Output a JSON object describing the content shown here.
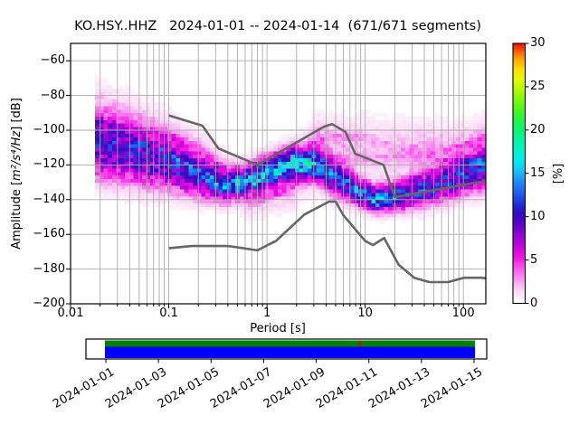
{
  "chart_data": {
    "type": "heatmap",
    "subtype": "ppsd-spectrogram",
    "title": "KO.HSY..HHZ   2024-01-01 -- 2024-01-14  (671/671 segments)",
    "station": "KO.HSY..HHZ",
    "date_range": "2024-01-01 -- 2024-01-14",
    "segments": "671/671 segments",
    "xlabel": "Period [s]",
    "ylabel": {
      "prefix": "Amplitude [",
      "math": "m²/s⁴/Hz",
      "suffix": "] [dB]"
    },
    "x_axis": {
      "scale": "log",
      "min": 0.01,
      "max": 170,
      "ticks": [
        0.01,
        0.1,
        1,
        10,
        100
      ],
      "tick_labels": [
        "0.01",
        "0.1",
        "1",
        "10",
        "100"
      ]
    },
    "y_axis": {
      "min": -200,
      "max": -50,
      "ticks": [
        -60,
        -80,
        -100,
        -120,
        -140,
        -160,
        -180,
        -200
      ],
      "tick_labels": [
        "−60",
        "−80",
        "−100",
        "−120",
        "−140",
        "−160",
        "−180",
        "−200"
      ]
    },
    "grid": {
      "color": "#ababab",
      "major_x": true,
      "minor_x": true,
      "major_y": true
    },
    "colorbar": {
      "label": "[%]",
      "min": 0,
      "max": 30,
      "ticks": [
        0,
        5,
        10,
        15,
        20,
        25,
        30
      ],
      "stops": [
        [
          0,
          "#ffffff"
        ],
        [
          0.05,
          "#fdd7f7"
        ],
        [
          0.1,
          "#fb8af0"
        ],
        [
          0.15,
          "#f93fe9"
        ],
        [
          0.18,
          "#ef0fe0"
        ],
        [
          0.22,
          "#c307dd"
        ],
        [
          0.27,
          "#8a05d3"
        ],
        [
          0.31,
          "#5503c8"
        ],
        [
          0.35,
          "#2d0cc4"
        ],
        [
          0.38,
          "#1e30d8"
        ],
        [
          0.43,
          "#1e64ef"
        ],
        [
          0.48,
          "#1d9bf9"
        ],
        [
          0.52,
          "#0fd2fb"
        ],
        [
          0.56,
          "#02f0e9"
        ],
        [
          0.61,
          "#02f5b5"
        ],
        [
          0.66,
          "#06f67c"
        ],
        [
          0.71,
          "#20f73e"
        ],
        [
          0.76,
          "#5bf911"
        ],
        [
          0.81,
          "#a0fb02"
        ],
        [
          0.86,
          "#e0fc02"
        ],
        [
          0.9,
          "#fddf01"
        ],
        [
          0.94,
          "#fda501"
        ],
        [
          0.97,
          "#fb5a01"
        ],
        [
          1.0,
          "#f90804"
        ]
      ]
    },
    "noise_models": {
      "color": "#666666",
      "nhnm": [
        [
          0.1,
          -91.5
        ],
        [
          0.22,
          -97.4
        ],
        [
          0.32,
          -110.5
        ],
        [
          0.8,
          -120.0
        ],
        [
          3.8,
          -98.0
        ],
        [
          4.6,
          -96.5
        ],
        [
          6.3,
          -101.0
        ],
        [
          7.9,
          -113.5
        ],
        [
          15.4,
          -120.0
        ],
        [
          20.0,
          -138.5
        ],
        [
          169.5,
          -129.2
        ]
      ],
      "nlnm": [
        [
          0.1,
          -168.0
        ],
        [
          0.17,
          -166.7
        ],
        [
          0.4,
          -166.7
        ],
        [
          0.8,
          -169.2
        ],
        [
          1.24,
          -163.7
        ],
        [
          2.4,
          -148.6
        ],
        [
          4.3,
          -141.1
        ],
        [
          5.0,
          -141.1
        ],
        [
          6.0,
          -149.0
        ],
        [
          10.0,
          -163.8
        ],
        [
          12.0,
          -166.2
        ],
        [
          15.6,
          -162.1
        ],
        [
          21.9,
          -177.5
        ],
        [
          31.6,
          -185.0
        ],
        [
          45.0,
          -187.5
        ],
        [
          70.0,
          -187.5
        ],
        [
          101.0,
          -185.0
        ],
        [
          154.0,
          -185.0
        ],
        [
          169.5,
          -185.3
        ]
      ]
    },
    "density": {
      "logp_min": -1.75,
      "logp_max": 2.2294,
      "db_bin": 2,
      "controls": [
        {
          "logp": -1.75,
          "mode": -111,
          "sigma": 11,
          "amp": 8.5,
          "halo_off": 19,
          "halo_sigma": 10,
          "halo_amp": 2.6
        },
        {
          "logp": -1.45,
          "mode": -115,
          "sigma": 10.5,
          "amp": 8.5,
          "halo_off": 17,
          "halo_sigma": 10,
          "halo_amp": 2.6
        },
        {
          "logp": -1.0,
          "mode": -121,
          "sigma": 9,
          "amp": 9,
          "halo_off": 14,
          "halo_sigma": 9,
          "halo_amp": 2.4
        },
        {
          "logp": -0.6,
          "mode": -129,
          "sigma": 7,
          "amp": 11,
          "halo_off": 11,
          "halo_sigma": 8,
          "halo_amp": 2.0
        },
        {
          "logp": -0.42,
          "mode": -133,
          "sigma": 5.5,
          "amp": 12,
          "halo_off": 9,
          "halo_sigma": 7,
          "halo_amp": 1.8
        },
        {
          "logp": -0.2,
          "mode": -128,
          "sigma": 5.5,
          "amp": 13,
          "halo_off": -9,
          "halo_sigma": 7,
          "halo_amp": 2.2
        },
        {
          "logp": 0.0,
          "mode": -123,
          "sigma": 5.5,
          "amp": 14,
          "halo_off": -11,
          "halo_sigma": 7,
          "halo_amp": 2.4
        },
        {
          "logp": 0.26,
          "mode": -118,
          "sigma": 5.5,
          "amp": 16,
          "halo_off": -12,
          "halo_sigma": 8,
          "halo_amp": 2.4
        },
        {
          "logp": 0.5,
          "mode": -121,
          "sigma": 6,
          "amp": 13.5,
          "halo_off": 13,
          "halo_sigma": 9,
          "halo_amp": 2.2
        },
        {
          "logp": 0.7,
          "mode": -128,
          "sigma": 6,
          "amp": 12.5,
          "halo_off": 19,
          "halo_sigma": 10,
          "halo_amp": 1.8
        },
        {
          "logp": 0.95,
          "mode": -136,
          "sigma": 5,
          "amp": 14,
          "halo_off": 27,
          "halo_sigma": 11,
          "halo_amp": 1.5
        },
        {
          "logp": 1.1,
          "mode": -140,
          "sigma": 4.5,
          "amp": 16,
          "halo_off": 30,
          "halo_sigma": 11,
          "halo_amp": 1.4
        },
        {
          "logp": 1.3,
          "mode": -138.5,
          "sigma": 5,
          "amp": 13.5,
          "halo_off": 28,
          "halo_sigma": 11,
          "halo_amp": 1.5
        },
        {
          "logp": 1.6,
          "mode": -134,
          "sigma": 6,
          "amp": 12,
          "halo_off": 23,
          "halo_sigma": 10,
          "halo_amp": 1.8
        },
        {
          "logp": 1.9,
          "mode": -129,
          "sigma": 6.5,
          "amp": 11,
          "halo_off": 17,
          "halo_sigma": 9,
          "halo_amp": 2.0
        },
        {
          "logp": 2.23,
          "mode": -122,
          "sigma": 7,
          "amp": 11.5,
          "halo_off": 13,
          "halo_sigma": 9,
          "halo_amp": 2.3
        }
      ]
    }
  },
  "timeline": {
    "dates": [
      "2024-01-01",
      "2024-01-03",
      "2024-01-05",
      "2024-01-07",
      "2024-01-09",
      "2024-01-11",
      "2024-01-13",
      "2024-01-15"
    ],
    "coverage_color": "#008000",
    "extent_color": "#0000ff",
    "gap_color": "#dd0000",
    "gap_frac": 0.69
  },
  "frame_color": "#000000",
  "background_color": "#ffffff"
}
